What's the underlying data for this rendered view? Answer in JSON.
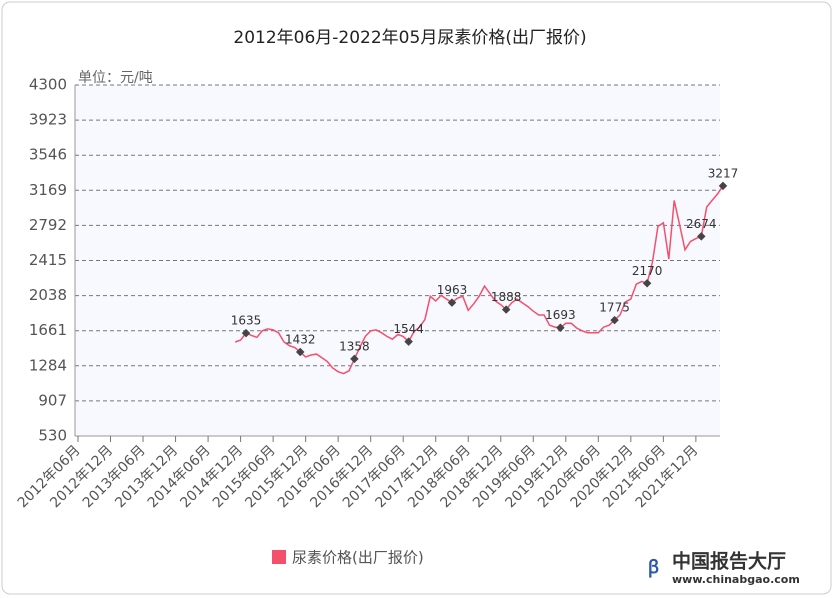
{
  "chart_data": {
    "type": "line",
    "title": "2012年06月-2022年05月尿素价格(出厂报价)",
    "y_axis_label": "单位：元/吨",
    "categories": [
      "2012年06月",
      null,
      null,
      null,
      null,
      null,
      "2012年12月",
      null,
      null,
      null,
      null,
      null,
      "2013年06月",
      null,
      null,
      null,
      null,
      null,
      "2013年12月",
      null,
      null,
      null,
      null,
      null,
      "2014年06月",
      null,
      null,
      null,
      null,
      null,
      "2014年12月",
      null,
      null,
      null,
      null,
      null,
      "2015年06月",
      null,
      null,
      null,
      null,
      null,
      "2015年12月",
      null,
      null,
      null,
      null,
      null,
      "2016年06月",
      null,
      null,
      null,
      null,
      null,
      "2016年12月",
      null,
      null,
      null,
      null,
      null,
      "2017年06月",
      null,
      null,
      null,
      null,
      null,
      "2017年12月",
      null,
      null,
      null,
      null,
      null,
      "2018年06月",
      null,
      null,
      null,
      null,
      null,
      "2018年12月",
      null,
      null,
      null,
      null,
      null,
      "2019年06月",
      null,
      null,
      null,
      null,
      null,
      "2019年12月",
      null,
      null,
      null,
      null,
      null,
      "2020年06月",
      null,
      null,
      null,
      null,
      null,
      "2020年12月",
      null,
      null,
      null,
      null,
      null,
      "2021年06月",
      null,
      null,
      null,
      null,
      null,
      "2021年12月",
      null,
      null,
      null,
      null,
      null
    ],
    "series": [
      {
        "name": "尿素价格(出厂报价)",
        "color": "#f4506c",
        "values": [
          null,
          null,
          null,
          null,
          null,
          null,
          null,
          null,
          null,
          null,
          null,
          null,
          null,
          null,
          null,
          null,
          null,
          null,
          null,
          null,
          null,
          null,
          null,
          null,
          null,
          null,
          null,
          null,
          null,
          1540,
          1560,
          1635,
          1610,
          1590,
          1660,
          1680,
          1670,
          1640,
          1540,
          1500,
          1480,
          1432,
          1380,
          1400,
          1410,
          1370,
          1330,
          1260,
          1220,
          1200,
          1230,
          1358,
          1480,
          1600,
          1660,
          1670,
          1640,
          1600,
          1570,
          1620,
          1600,
          1544,
          1650,
          1700,
          1780,
          2030,
          1980,
          2040,
          2000,
          1963,
          2010,
          2030,
          1880,
          1950,
          2030,
          2140,
          2060,
          1980,
          1940,
          1888,
          1960,
          2000,
          1960,
          1920,
          1870,
          1830,
          1830,
          1720,
          1700,
          1693,
          1740,
          1740,
          1690,
          1660,
          1640,
          1640,
          1640,
          1700,
          1720,
          1775,
          1830,
          1970,
          2000,
          2160,
          2190,
          2170,
          2400,
          2780,
          2820,
          2430,
          3060,
          2800,
          2530,
          2620,
          2650,
          2674,
          2990,
          3060,
          3130,
          3217
        ],
        "value_labels": [
          null,
          null,
          null,
          null,
          null,
          null,
          null,
          null,
          null,
          null,
          null,
          null,
          null,
          null,
          null,
          null,
          null,
          null,
          null,
          null,
          null,
          null,
          null,
          null,
          null,
          null,
          null,
          null,
          null,
          null,
          null,
          "1635",
          null,
          null,
          null,
          null,
          null,
          null,
          null,
          null,
          null,
          "1432",
          null,
          null,
          null,
          null,
          null,
          null,
          null,
          null,
          null,
          "1358",
          null,
          null,
          null,
          null,
          null,
          null,
          null,
          null,
          null,
          "1544",
          null,
          null,
          null,
          null,
          null,
          null,
          null,
          "1963",
          null,
          null,
          null,
          null,
          null,
          null,
          null,
          null,
          null,
          "1888",
          null,
          null,
          null,
          null,
          null,
          null,
          null,
          null,
          null,
          "1693",
          null,
          null,
          null,
          null,
          null,
          null,
          null,
          null,
          null,
          "1775",
          null,
          null,
          null,
          null,
          null,
          "2170",
          null,
          null,
          null,
          null,
          null,
          null,
          null,
          null,
          null,
          "2674",
          null,
          null,
          null,
          "3217"
        ]
      }
    ],
    "ylim": [
      530,
      4300
    ],
    "yticks": [
      530,
      907,
      1284,
      1661,
      2038,
      2415,
      2792,
      3169,
      3546,
      3923,
      4300
    ],
    "grid": true,
    "marker_color": "#444444"
  },
  "watermark": {
    "name": "中国报告大厅",
    "url": "www.chinabgao.com"
  }
}
